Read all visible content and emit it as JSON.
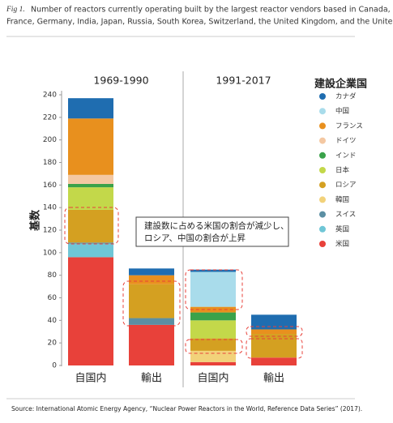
{
  "caption": {
    "label": "Fig 1.",
    "lines": [
      "Number of reactors currently operating built by the largest reactor vendors based in Canada, China,",
      "France, Germany, India, Japan, Russia, South Korea, Switzerland, the United Kingdom, and the United States."
    ]
  },
  "source": "Source: International Atomic Energy Agency, “Nuclear Power Reactors in the World, Reference Data Series” (2017).",
  "chart_data": {
    "type": "stacked_bar",
    "y_label": "基数",
    "legend_title": "建設企業国",
    "groups": [
      "1969-1990",
      "1991-2017"
    ],
    "categories": [
      "自国内",
      "輸出",
      "自国内",
      "輸出"
    ],
    "ylim": [
      0,
      240
    ],
    "yticks": [
      0,
      20,
      40,
      60,
      80,
      100,
      120,
      140,
      160,
      180,
      200,
      220,
      240
    ],
    "annotation": [
      "建設数に占める米国の割合が減少し、",
      "ロシア、中国の割合が上昇"
    ],
    "series": [
      {
        "name": "カナダ",
        "color": "#1f6db0",
        "values": [
          18,
          6,
          2,
          13
        ]
      },
      {
        "name": "中国",
        "color": "#a9dceb",
        "values": [
          null,
          null,
          31,
          null
        ]
      },
      {
        "name": "フランス",
        "color": "#e8901e",
        "values": [
          50,
          8,
          5,
          4
        ]
      },
      {
        "name": "ドイツ",
        "color": "#f4c8a2",
        "values": [
          8,
          null,
          null,
          null
        ]
      },
      {
        "name": "インド",
        "color": "#3aa24a",
        "values": [
          3,
          null,
          7,
          null
        ]
      },
      {
        "name": "日本",
        "color": "#c3d84a",
        "values": [
          20,
          null,
          16,
          null
        ]
      },
      {
        "name": "ロシア",
        "color": "#d4a021",
        "values": [
          29,
          30,
          11,
          21
        ]
      },
      {
        "name": "韓国",
        "color": "#f2d27a",
        "values": [
          null,
          null,
          10,
          null
        ]
      },
      {
        "name": "スイス",
        "color": "#5b8fa3",
        "values": [
          1,
          6,
          null,
          null
        ]
      },
      {
        "name": "英国",
        "color": "#6fc6d6",
        "values": [
          12,
          null,
          null,
          null
        ]
      },
      {
        "name": "米国",
        "color": "#e8413a",
        "values": [
          96,
          36,
          3,
          7
        ]
      }
    ]
  }
}
